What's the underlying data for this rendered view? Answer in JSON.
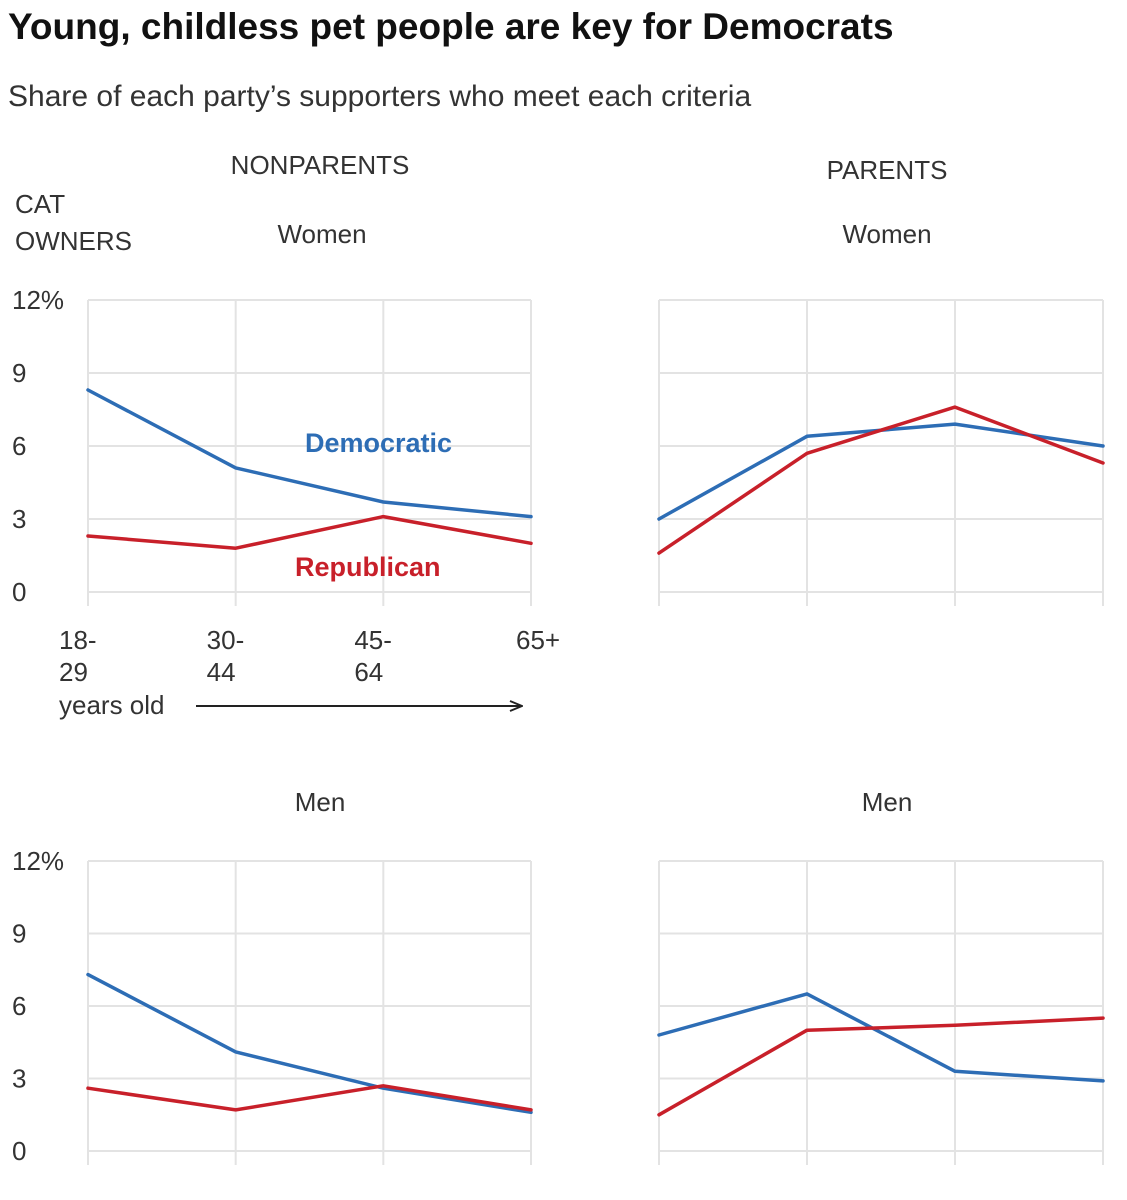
{
  "title": "Young, childless pet people are key for Democrats",
  "subtitle": "Share of each party’s supporters who meet each criteria",
  "headers": {
    "nonparents": "NONPARENTS",
    "parents": "PARENTS",
    "cat_owners_line1": "CAT",
    "cat_owners_line2": "OWNERS"
  },
  "axis_note": "years old",
  "colors": {
    "democratic": "#2d6db5",
    "republican": "#c8202a",
    "grid": "#e3e3e3"
  },
  "chart_data": [
    {
      "type": "line",
      "group": "NONPARENTS",
      "panel_title": "Women",
      "categories": [
        "18-29",
        "30-44",
        "45-64",
        "65+"
      ],
      "x_tick_labels": [
        [
          "18-",
          "29"
        ],
        [
          "30-",
          "44"
        ],
        [
          "45-",
          "64"
        ],
        [
          "65+"
        ]
      ],
      "y_ticks": [
        "12%",
        "9",
        "6",
        "3",
        "0"
      ],
      "ylim": [
        0,
        12
      ],
      "series": [
        {
          "name": "Democratic",
          "key": "democratic",
          "values": [
            8.3,
            5.1,
            3.7,
            3.1
          ]
        },
        {
          "name": "Republican",
          "key": "republican",
          "values": [
            2.3,
            1.8,
            3.1,
            2.0
          ]
        }
      ]
    },
    {
      "type": "line",
      "group": "PARENTS",
      "panel_title": "Women",
      "categories": [
        "18-29",
        "30-44",
        "45-64",
        "65+"
      ],
      "ylim": [
        0,
        12
      ],
      "series": [
        {
          "key": "democratic",
          "values": [
            3.0,
            6.4,
            6.9,
            6.0
          ]
        },
        {
          "key": "republican",
          "values": [
            1.6,
            5.7,
            7.6,
            5.3
          ]
        }
      ]
    },
    {
      "type": "line",
      "group": "NONPARENTS",
      "panel_title": "Men",
      "categories": [
        "18-29",
        "30-44",
        "45-64",
        "65+"
      ],
      "y_ticks": [
        "12%",
        "9",
        "6",
        "3",
        "0"
      ],
      "ylim": [
        0,
        12
      ],
      "series": [
        {
          "key": "democratic",
          "values": [
            7.3,
            4.1,
            2.6,
            1.6
          ]
        },
        {
          "key": "republican",
          "values": [
            2.6,
            1.7,
            2.7,
            1.7
          ]
        }
      ]
    },
    {
      "type": "line",
      "group": "PARENTS",
      "panel_title": "Men",
      "categories": [
        "18-29",
        "30-44",
        "45-64",
        "65+"
      ],
      "ylim": [
        0,
        12
      ],
      "series": [
        {
          "key": "democratic",
          "values": [
            4.8,
            6.5,
            3.3,
            2.9
          ]
        },
        {
          "key": "republican",
          "values": [
            1.5,
            5.0,
            5.2,
            5.5
          ]
        }
      ]
    }
  ]
}
